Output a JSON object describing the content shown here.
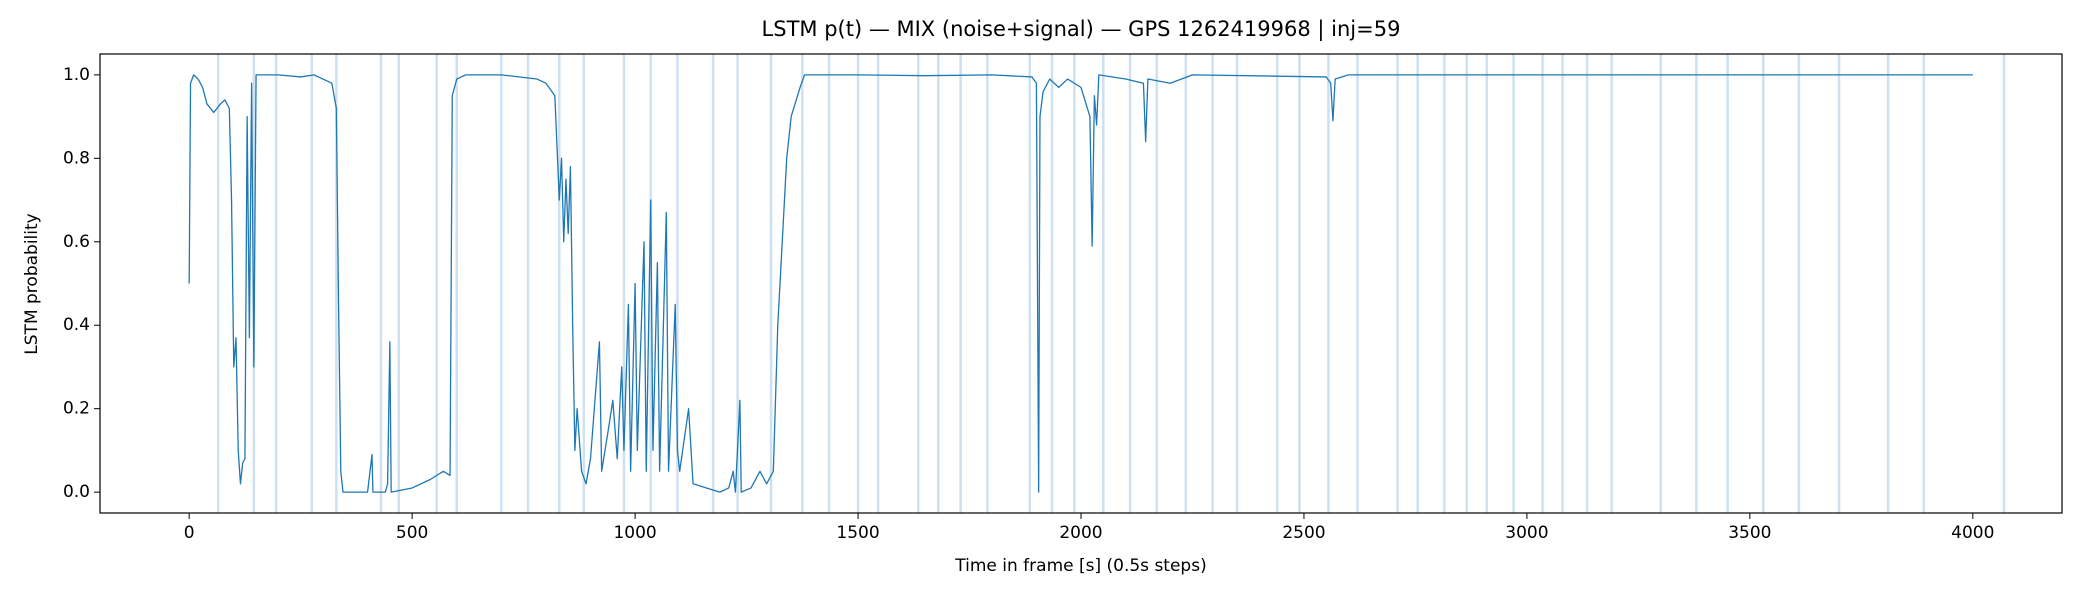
{
  "chart_data": {
    "type": "line",
    "title": "LSTM p(t) — MIX (noise+signal) — GPS 1262419968 | inj=59",
    "x_label": "Time in frame [s] (0.5s steps)",
    "y_label": "LSTM probability",
    "color": "#1f77b4",
    "injection_color": "#aecde6",
    "xlim": [
      -200,
      4200
    ],
    "ylim": [
      -0.05,
      1.05
    ],
    "xticks": [
      0,
      500,
      1000,
      1500,
      2000,
      2500,
      3000,
      3500,
      4000
    ],
    "yticks": [
      {
        "value": 0,
        "label": "0.0"
      },
      {
        "value": 0.2,
        "label": "0.2"
      },
      {
        "value": 0.4,
        "label": "0.4"
      },
      {
        "value": 0.6,
        "label": "0.6"
      },
      {
        "value": 0.8,
        "label": "0.8"
      },
      {
        "value": 1,
        "label": "1.0"
      }
    ],
    "injections": [
      65,
      145,
      195,
      275,
      330,
      430,
      470,
      555,
      600,
      700,
      760,
      830,
      885,
      975,
      1035,
      1095,
      1175,
      1230,
      1305,
      1375,
      1435,
      1500,
      1545,
      1635,
      1680,
      1730,
      1790,
      1885,
      1935,
      1985,
      2050,
      2110,
      2170,
      2235,
      2295,
      2350,
      2440,
      2490,
      2555,
      2620,
      2710,
      2755,
      2815,
      2865,
      2910,
      2970,
      3035,
      3080,
      3135,
      3190,
      3300,
      3380,
      3450,
      3530,
      3610,
      3700,
      3810,
      3890,
      4070
    ],
    "x": [
      0,
      3,
      10,
      20,
      30,
      40,
      55,
      70,
      80,
      90,
      95,
      100,
      105,
      110,
      115,
      120,
      125,
      130,
      135,
      140,
      145,
      150,
      200,
      250,
      280,
      300,
      320,
      330,
      335,
      340,
      345,
      400,
      410,
      412,
      440,
      445,
      450,
      453,
      500,
      540,
      570,
      585,
      590,
      600,
      620,
      700,
      780,
      800,
      820,
      830,
      835,
      840,
      845,
      850,
      855,
      860,
      865,
      870,
      880,
      890,
      900,
      920,
      925,
      940,
      950,
      960,
      970,
      975,
      985,
      990,
      1000,
      1005,
      1020,
      1025,
      1035,
      1040,
      1050,
      1055,
      1070,
      1075,
      1090,
      1095,
      1100,
      1120,
      1130,
      1160,
      1190,
      1210,
      1220,
      1225,
      1235,
      1238,
      1260,
      1280,
      1295,
      1310,
      1320,
      1330,
      1340,
      1350,
      1370,
      1380,
      1500,
      1650,
      1800,
      1890,
      1900,
      1905,
      1908,
      1915,
      1930,
      1950,
      1970,
      2000,
      2020,
      2025,
      2030,
      2035,
      2040,
      2100,
      2140,
      2145,
      2150,
      2200,
      2250,
      2550,
      2560,
      2565,
      2570,
      2600,
      3000,
      4000
    ],
    "values": [
      0.5,
      0.98,
      1.0,
      0.99,
      0.97,
      0.93,
      0.91,
      0.93,
      0.94,
      0.92,
      0.7,
      0.3,
      0.37,
      0.1,
      0.02,
      0.07,
      0.08,
      0.9,
      0.37,
      0.98,
      0.3,
      1.0,
      1.0,
      0.995,
      1.0,
      0.99,
      0.98,
      0.92,
      0.45,
      0.05,
      0.0,
      0.0,
      0.09,
      0.0,
      0.0,
      0.02,
      0.36,
      0.0,
      0.01,
      0.03,
      0.05,
      0.04,
      0.95,
      0.99,
      1.0,
      1.0,
      0.99,
      0.98,
      0.95,
      0.7,
      0.8,
      0.6,
      0.75,
      0.62,
      0.78,
      0.4,
      0.1,
      0.2,
      0.05,
      0.02,
      0.08,
      0.36,
      0.05,
      0.15,
      0.22,
      0.08,
      0.3,
      0.1,
      0.45,
      0.05,
      0.5,
      0.1,
      0.6,
      0.05,
      0.7,
      0.1,
      0.55,
      0.05,
      0.67,
      0.05,
      0.45,
      0.1,
      0.05,
      0.2,
      0.02,
      0.01,
      0.0,
      0.01,
      0.05,
      0.0,
      0.22,
      0.0,
      0.01,
      0.05,
      0.02,
      0.05,
      0.4,
      0.6,
      0.8,
      0.9,
      0.97,
      1.0,
      1.0,
      0.998,
      1.0,
      0.995,
      0.98,
      0.0,
      0.9,
      0.96,
      0.99,
      0.97,
      0.99,
      0.97,
      0.9,
      0.59,
      0.95,
      0.88,
      1.0,
      0.99,
      0.98,
      0.84,
      0.99,
      0.98,
      1.0,
      0.995,
      0.98,
      0.89,
      0.99,
      1.0,
      1.0,
      1.0
    ]
  }
}
